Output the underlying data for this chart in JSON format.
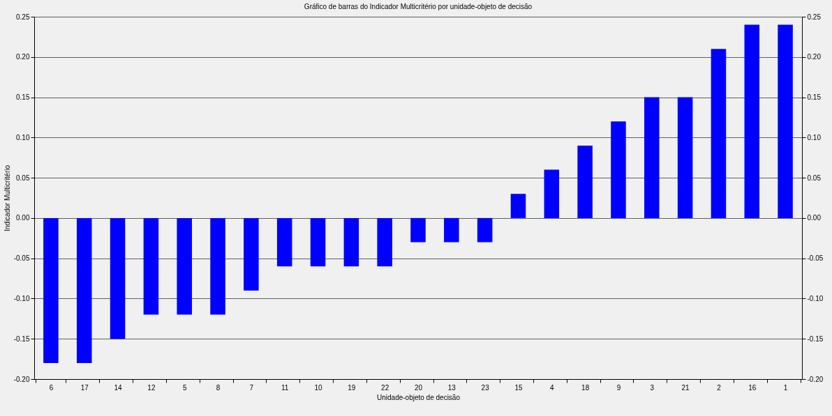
{
  "chart_data": {
    "type": "bar",
    "title": "Gráfico de barras do Indicador Multicritério por unidade-objeto de decisão",
    "xlabel": "Unidade-objeto de decisão",
    "ylabel": "Indicador Multicritério",
    "categories": [
      "6",
      "17",
      "14",
      "12",
      "5",
      "8",
      "7",
      "11",
      "10",
      "19",
      "22",
      "20",
      "13",
      "23",
      "15",
      "4",
      "18",
      "9",
      "3",
      "21",
      "2",
      "16",
      "1"
    ],
    "values": [
      -0.18,
      -0.18,
      -0.15,
      -0.12,
      -0.12,
      -0.12,
      -0.09,
      -0.06,
      -0.06,
      -0.06,
      -0.06,
      -0.03,
      -0.03,
      -0.03,
      0.03,
      0.06,
      0.09,
      0.12,
      0.15,
      0.15,
      0.21,
      0.24,
      0.24
    ],
    "color": "#0000ff",
    "ylim": [
      -0.2,
      0.25
    ],
    "yticks": [
      {
        "value": -0.2,
        "label": "-0.20"
      },
      {
        "value": -0.15,
        "label": "-0.15"
      },
      {
        "value": -0.1,
        "label": "-0.10"
      },
      {
        "value": -0.05,
        "label": "-0.05"
      },
      {
        "value": 0,
        "label": "0.00"
      },
      {
        "value": 0.05,
        "label": "0.05"
      },
      {
        "value": 0.1,
        "label": "0.10"
      },
      {
        "value": 0.15,
        "label": "0.15"
      },
      {
        "value": 0.2,
        "label": "0.20"
      },
      {
        "value": 0.25,
        "label": "0.25"
      }
    ],
    "y2lim": [
      -0.2,
      0.25
    ],
    "y2ticks": [
      {
        "value": -0.2,
        "label": "-0.20"
      },
      {
        "value": -0.15,
        "label": "-0.15"
      },
      {
        "value": -0.1,
        "label": "-0.10"
      },
      {
        "value": -0.05,
        "label": "-0.05"
      },
      {
        "value": 0,
        "label": "0.00"
      },
      {
        "value": 0.05,
        "label": "0.05"
      },
      {
        "value": 0.1,
        "label": "0.10"
      },
      {
        "value": 0.15,
        "label": "0.15"
      },
      {
        "value": 0.2,
        "label": "0.20"
      },
      {
        "value": 0.25,
        "label": "0.25"
      }
    ],
    "grid": "y"
  }
}
